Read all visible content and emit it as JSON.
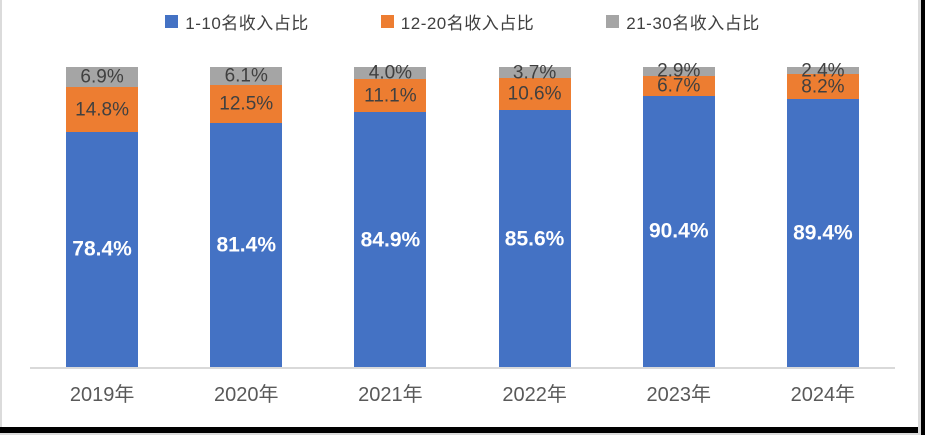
{
  "page": {
    "background": "#FFFFFF",
    "border_color": "#DBDBDB",
    "edge_strip_color": "#000000"
  },
  "legend": {
    "items": [
      {
        "label": "1-10名收入占比",
        "color": "#4472C4"
      },
      {
        "label": "12-20名收入占比",
        "color": "#ED7D31"
      },
      {
        "label": "21-30名收入占比",
        "color": "#A5A5A5"
      }
    ]
  },
  "chart_data": {
    "type": "bar",
    "stacked": true,
    "orientation": "vertical",
    "title": "",
    "xlabel": "",
    "ylabel": "",
    "ylim": [
      0,
      100
    ],
    "grid": false,
    "legend_position": "top",
    "axis_line_color": "#D9D9D9",
    "xtick_color": "#595959",
    "categories": [
      "2019年",
      "2020年",
      "2021年",
      "2022年",
      "2023年",
      "2024年"
    ],
    "series": [
      {
        "name": "1-10名收入占比",
        "color": "#4472C4",
        "label_color": "#FFFFFF",
        "label_style": "bold",
        "values": [
          78.4,
          81.4,
          84.9,
          85.6,
          90.4,
          89.4
        ],
        "labels": [
          "78.4%",
          "81.4%",
          "84.9%",
          "85.6%",
          "90.4%",
          "89.4%"
        ]
      },
      {
        "name": "12-20名收入占比",
        "color": "#ED7D31",
        "label_color": "#404040",
        "label_style": "regular",
        "values": [
          14.8,
          12.5,
          11.1,
          10.6,
          6.7,
          8.2
        ],
        "labels": [
          "14.8%",
          "12.5%",
          "11.1%",
          "10.6%",
          "6.7%",
          "8.2%"
        ]
      },
      {
        "name": "21-30名收入占比",
        "color": "#A5A5A5",
        "label_color": "#404040",
        "label_style": "regular",
        "values": [
          6.9,
          6.1,
          4.0,
          3.7,
          2.9,
          2.4
        ],
        "labels": [
          "6.9%",
          "6.1%",
          "4.0%",
          "3.7%",
          "2.9%",
          "2.4%"
        ]
      }
    ]
  }
}
